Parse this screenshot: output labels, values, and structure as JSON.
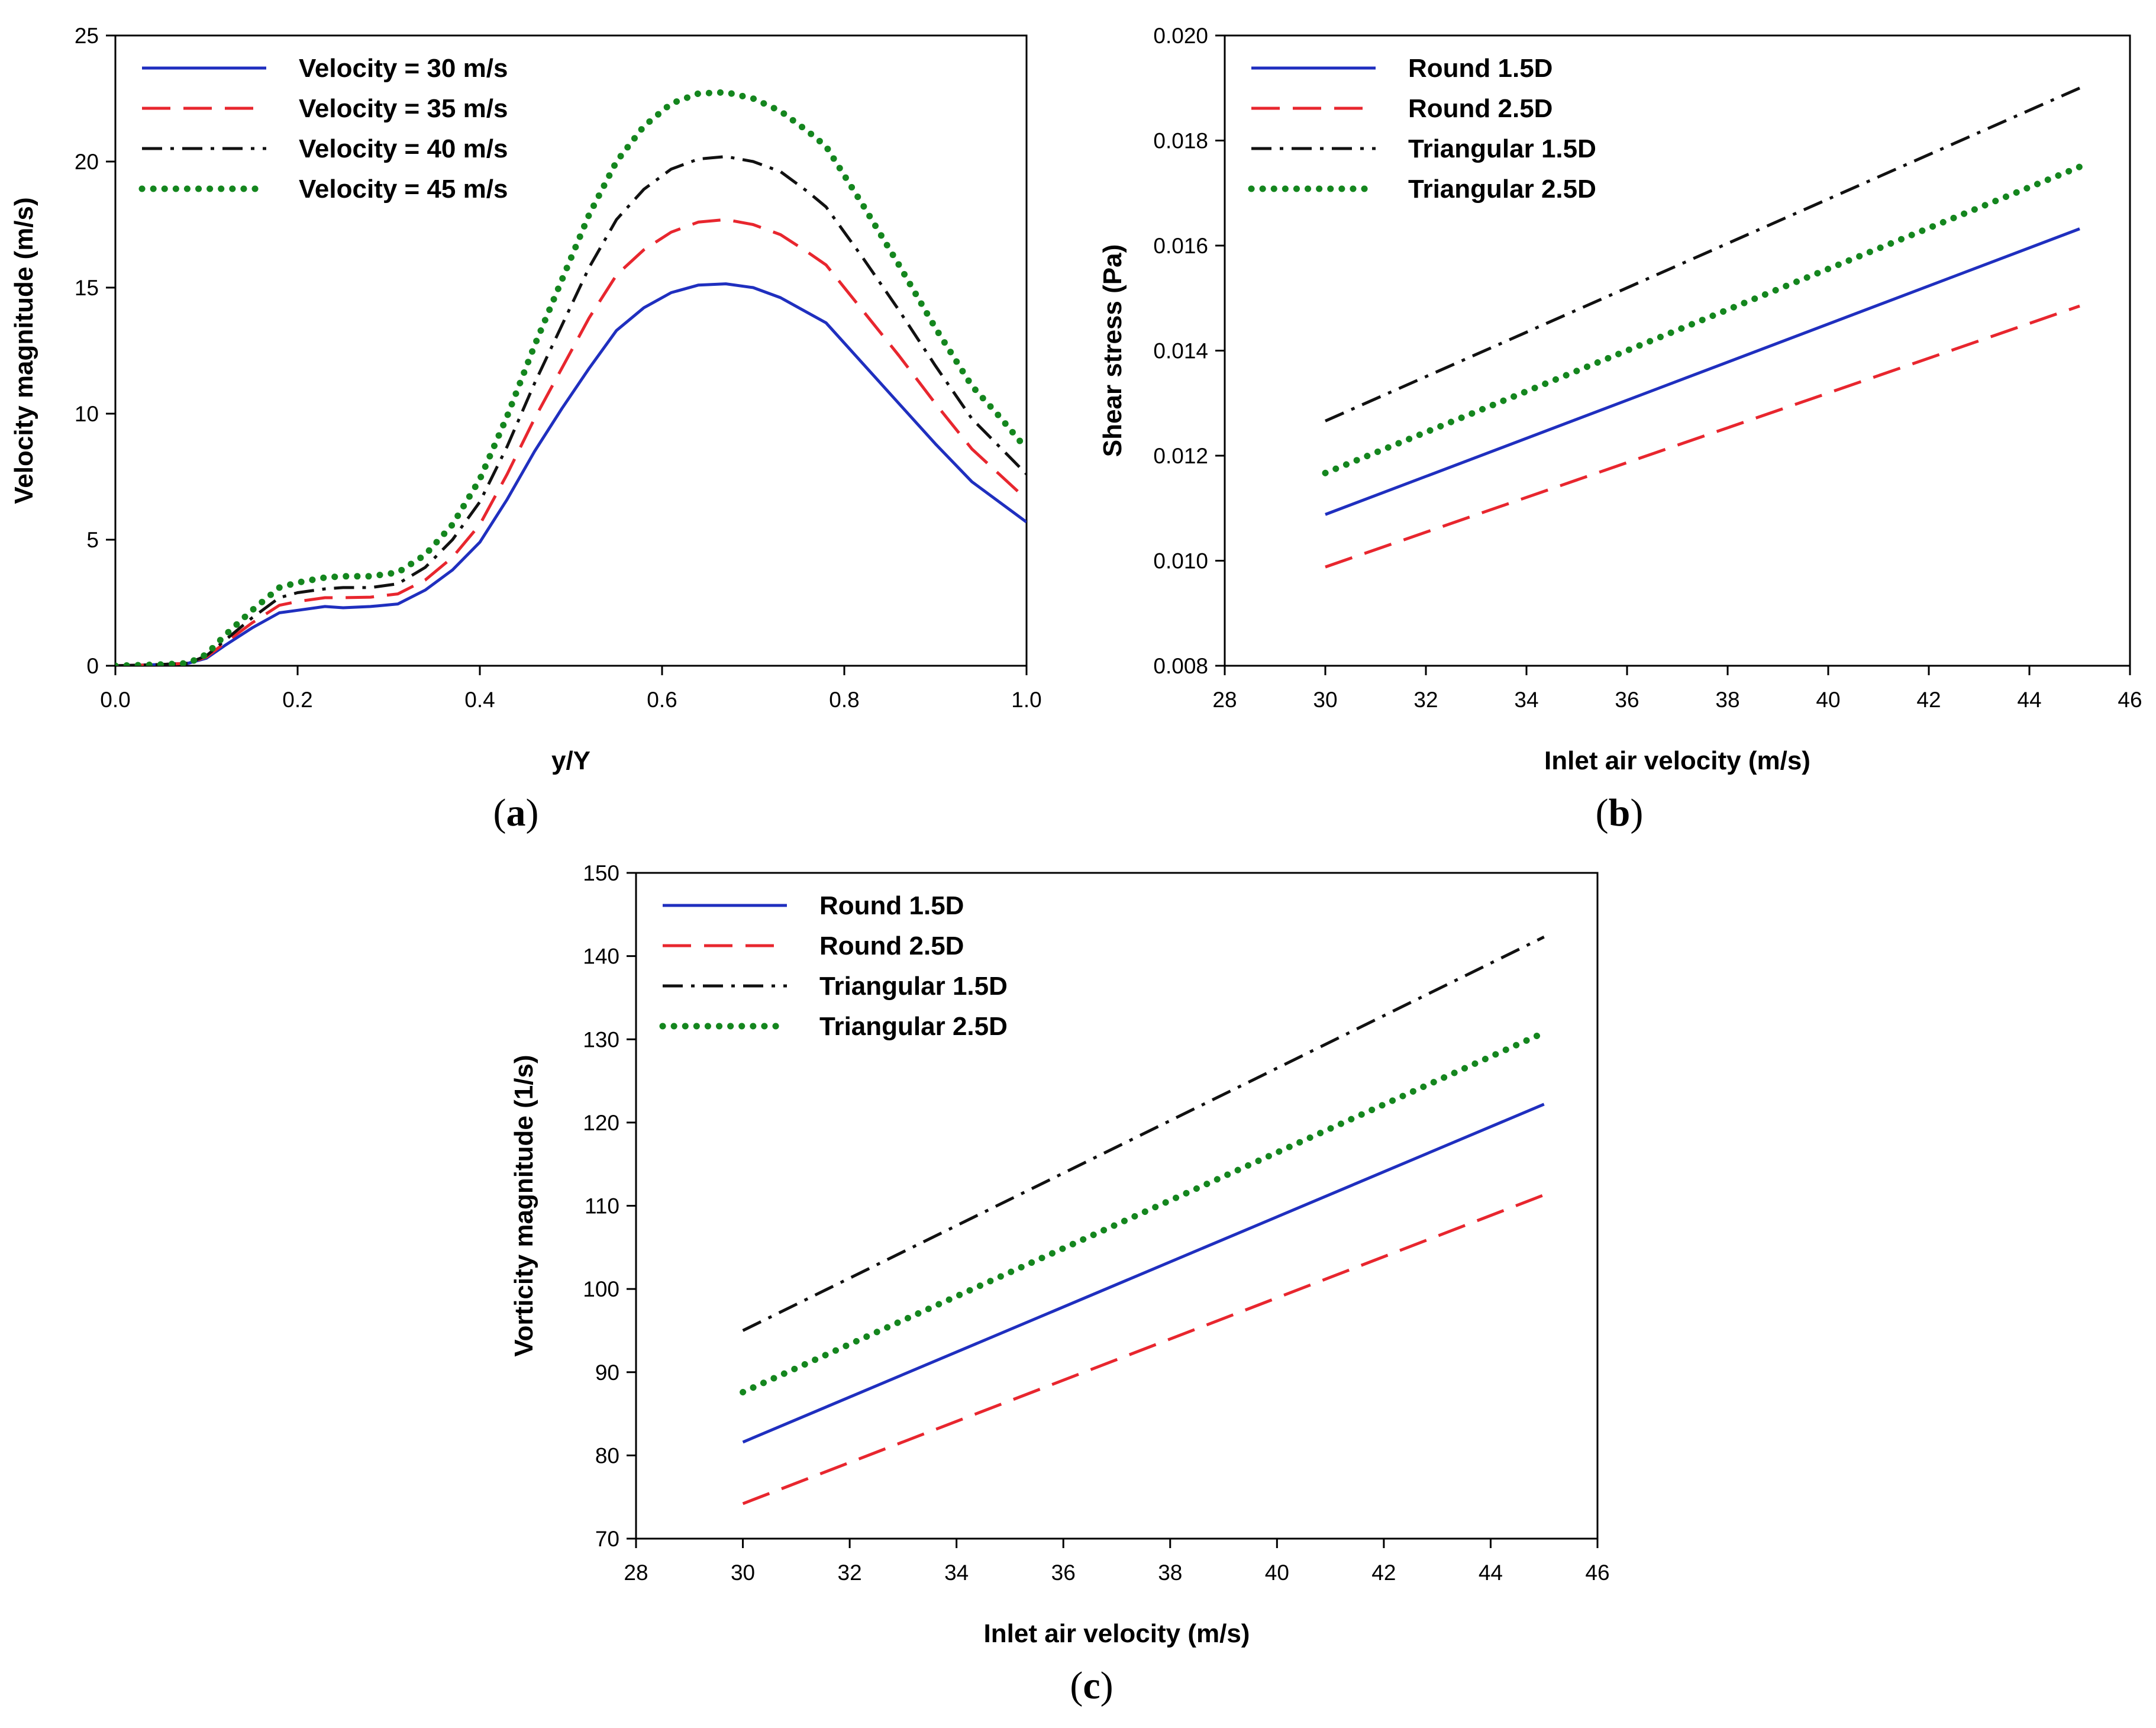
{
  "figure": {
    "panels": [
      "a",
      "b",
      "c"
    ]
  },
  "chart_data": [
    {
      "id": "a",
      "type": "line",
      "caption_letter": "a",
      "xlabel": "y/Y",
      "ylabel": "Velocity magnitude (m/s)",
      "xlim": [
        0,
        1
      ],
      "ylim": [
        0,
        25
      ],
      "xticks": [
        0,
        0.2,
        0.4,
        0.6,
        0.8,
        1.0
      ],
      "xtick_labels": [
        "0.0",
        "0.2",
        "0.4",
        "0.6",
        "0.8",
        "1.0"
      ],
      "yticks": [
        0,
        5,
        10,
        15,
        20,
        25
      ],
      "ytick_labels": [
        "0",
        "5",
        "10",
        "15",
        "20",
        "25"
      ],
      "legend_position": "top-left",
      "series": [
        {
          "name": "Velocity = 30 m/s",
          "color": "#1f2fbf",
          "dash": "solid",
          "x": [
            0,
            0.05,
            0.08,
            0.1,
            0.12,
            0.15,
            0.18,
            0.2,
            0.23,
            0.25,
            0.28,
            0.31,
            0.34,
            0.37,
            0.4,
            0.43,
            0.46,
            0.49,
            0.52,
            0.55,
            0.58,
            0.61,
            0.64,
            0.67,
            0.7,
            0.73,
            0.76,
            0.78,
            0.82,
            0.86,
            0.9,
            0.94,
            0.97,
            1.0
          ],
          "y": [
            0,
            0.05,
            0.1,
            0.3,
            0.8,
            1.5,
            2.1,
            2.2,
            2.35,
            2.3,
            2.35,
            2.45,
            3.0,
            3.8,
            4.9,
            6.6,
            8.5,
            10.2,
            11.8,
            13.3,
            14.2,
            14.8,
            15.1,
            15.15,
            15.0,
            14.6,
            14.0,
            13.6,
            12.0,
            10.4,
            8.8,
            7.3,
            6.5,
            5.7
          ]
        },
        {
          "name": "Velocity = 35 m/s",
          "color": "#e8262e",
          "dash": "long-dash",
          "x": [
            0,
            0.05,
            0.08,
            0.1,
            0.12,
            0.15,
            0.18,
            0.2,
            0.23,
            0.25,
            0.28,
            0.31,
            0.34,
            0.37,
            0.4,
            0.43,
            0.46,
            0.49,
            0.52,
            0.55,
            0.58,
            0.61,
            0.64,
            0.67,
            0.7,
            0.73,
            0.76,
            0.78,
            0.82,
            0.86,
            0.9,
            0.94,
            0.97,
            1.0
          ],
          "y": [
            0,
            0.05,
            0.1,
            0.35,
            0.9,
            1.7,
            2.4,
            2.55,
            2.7,
            2.7,
            2.72,
            2.85,
            3.4,
            4.3,
            5.6,
            7.6,
            9.8,
            11.8,
            13.8,
            15.5,
            16.5,
            17.2,
            17.6,
            17.7,
            17.5,
            17.1,
            16.4,
            15.9,
            14.1,
            12.3,
            10.4,
            8.6,
            7.6,
            6.6
          ]
        },
        {
          "name": "Velocity = 40 m/s",
          "color": "#111111",
          "dash": "dash-dot",
          "x": [
            0,
            0.05,
            0.08,
            0.1,
            0.12,
            0.15,
            0.18,
            0.2,
            0.23,
            0.25,
            0.28,
            0.31,
            0.34,
            0.37,
            0.4,
            0.43,
            0.46,
            0.49,
            0.52,
            0.55,
            0.58,
            0.61,
            0.64,
            0.67,
            0.7,
            0.73,
            0.76,
            0.78,
            0.82,
            0.86,
            0.9,
            0.94,
            0.97,
            1.0
          ],
          "y": [
            0,
            0.05,
            0.1,
            0.4,
            1.0,
            1.9,
            2.7,
            2.9,
            3.05,
            3.1,
            3.1,
            3.25,
            3.9,
            5.0,
            6.5,
            8.7,
            11.2,
            13.5,
            15.8,
            17.7,
            18.9,
            19.7,
            20.1,
            20.2,
            20.0,
            19.6,
            18.8,
            18.2,
            16.2,
            14.1,
            11.9,
            9.8,
            8.7,
            7.6
          ]
        },
        {
          "name": "Velocity = 45 m/s",
          "color": "#14861e",
          "dash": "dotted",
          "x": [
            0,
            0.05,
            0.08,
            0.1,
            0.12,
            0.15,
            0.18,
            0.2,
            0.23,
            0.25,
            0.28,
            0.31,
            0.34,
            0.37,
            0.4,
            0.43,
            0.46,
            0.49,
            0.52,
            0.55,
            0.58,
            0.61,
            0.64,
            0.67,
            0.7,
            0.73,
            0.76,
            0.78,
            0.82,
            0.86,
            0.9,
            0.94,
            0.97,
            1.0
          ],
          "y": [
            0,
            0.05,
            0.1,
            0.45,
            1.2,
            2.2,
            3.1,
            3.3,
            3.5,
            3.55,
            3.55,
            3.7,
            4.4,
            5.6,
            7.4,
            9.9,
            12.7,
            15.3,
            17.9,
            20.0,
            21.4,
            22.3,
            22.7,
            22.75,
            22.5,
            22.0,
            21.2,
            20.6,
            18.3,
            15.9,
            13.4,
            11.1,
            9.9,
            8.6
          ]
        }
      ]
    },
    {
      "id": "b",
      "type": "line",
      "caption_letter": "b",
      "xlabel": "Inlet air velocity (m/s)",
      "ylabel": "Shear stress (Pa)",
      "xlim": [
        28,
        46
      ],
      "ylim": [
        0.008,
        0.02
      ],
      "xticks": [
        28,
        30,
        32,
        34,
        36,
        38,
        40,
        42,
        44,
        46
      ],
      "xtick_labels": [
        "28",
        "30",
        "32",
        "34",
        "36",
        "38",
        "40",
        "42",
        "44",
        "46"
      ],
      "yticks": [
        0.008,
        0.01,
        0.012,
        0.014,
        0.016,
        0.018,
        0.02
      ],
      "ytick_labels": [
        "0.008",
        "0.010",
        "0.012",
        "0.014",
        "0.016",
        "0.018",
        "0.020"
      ],
      "legend_position": "top-left",
      "series": [
        {
          "name": "Round 1.5D",
          "color": "#1f2fbf",
          "dash": "solid",
          "x": [
            30,
            45
          ],
          "y": [
            0.01088,
            0.01632
          ]
        },
        {
          "name": "Round 2.5D",
          "color": "#e8262e",
          "dash": "long-dash",
          "x": [
            30,
            45
          ],
          "y": [
            0.00988,
            0.01485
          ]
        },
        {
          "name": "Triangular 1.5D",
          "color": "#111111",
          "dash": "dash-dot",
          "x": [
            30,
            45
          ],
          "y": [
            0.01266,
            0.019
          ]
        },
        {
          "name": "Triangular 2.5D",
          "color": "#14861e",
          "dash": "dotted",
          "x": [
            30,
            45
          ],
          "y": [
            0.01167,
            0.0175
          ]
        }
      ]
    },
    {
      "id": "c",
      "type": "line",
      "caption_letter": "c",
      "xlabel": "Inlet air velocity (m/s)",
      "ylabel": "Vorticity magnitude (1/s)",
      "xlim": [
        28,
        46
      ],
      "ylim": [
        70,
        150
      ],
      "xticks": [
        28,
        30,
        32,
        34,
        36,
        38,
        40,
        42,
        44,
        46
      ],
      "xtick_labels": [
        "28",
        "30",
        "32",
        "34",
        "36",
        "38",
        "40",
        "42",
        "44",
        "46"
      ],
      "yticks": [
        70,
        80,
        90,
        100,
        110,
        120,
        130,
        140,
        150
      ],
      "ytick_labels": [
        "70",
        "80",
        "90",
        "100",
        "110",
        "120",
        "130",
        "140",
        "150"
      ],
      "legend_position": "top-left",
      "series": [
        {
          "name": "Round 1.5D",
          "color": "#1f2fbf",
          "dash": "solid",
          "x": [
            30,
            45
          ],
          "y": [
            81.6,
            122.2
          ]
        },
        {
          "name": "Round 2.5D",
          "color": "#e8262e",
          "dash": "long-dash",
          "x": [
            30,
            45
          ],
          "y": [
            74.2,
            111.3
          ]
        },
        {
          "name": "Triangular 1.5D",
          "color": "#111111",
          "dash": "dash-dot",
          "x": [
            30,
            45
          ],
          "y": [
            95.0,
            142.3
          ]
        },
        {
          "name": "Triangular 2.5D",
          "color": "#14861e",
          "dash": "dotted",
          "x": [
            30,
            45
          ],
          "y": [
            87.6,
            130.8
          ]
        }
      ]
    }
  ]
}
